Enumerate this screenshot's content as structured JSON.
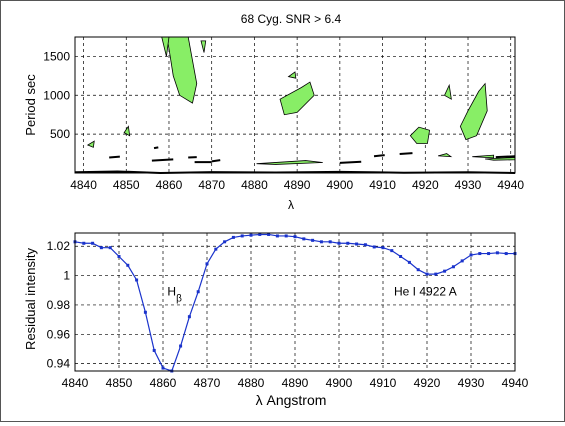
{
  "chart_data": [
    {
      "type": "contour",
      "title": "68 Cyg. SNR > 6.4",
      "xlabel": "λ",
      "ylabel": "Period  sec",
      "xlim": [
        4838,
        4941
      ],
      "ylim": [
        0,
        1750
      ],
      "xticks": [
        4840,
        4850,
        4860,
        4870,
        4880,
        4890,
        4900,
        4910,
        4920,
        4930,
        4940
      ],
      "yticks": [
        500,
        1000,
        1500
      ],
      "grid": true,
      "fill_color": "#88ee66",
      "regions": [
        {
          "points": [
            [
              4859.5,
              1750
            ],
            [
              4864.5,
              1750
            ],
            [
              4866.5,
              1150
            ],
            [
              4865.5,
              900
            ],
            [
              4862.5,
              1000
            ],
            [
              4861,
              1250
            ],
            [
              4860,
              1600
            ]
          ]
        },
        {
          "points": [
            [
              4858.3,
              1750
            ],
            [
              4860,
              1750
            ],
            [
              4859.4,
              1500
            ]
          ]
        },
        {
          "points": [
            [
              4867.5,
              1700
            ],
            [
              4868.6,
              1700
            ],
            [
              4868.2,
              1550
            ]
          ]
        },
        {
          "points": [
            [
              4886,
              950
            ],
            [
              4891,
              1100
            ],
            [
              4893,
              1170
            ],
            [
              4894,
              1000
            ],
            [
              4890,
              780
            ],
            [
              4887,
              750
            ]
          ]
        },
        {
          "points": [
            [
              4888,
              1240
            ],
            [
              4889.5,
              1300
            ],
            [
              4889.7,
              1220
            ]
          ]
        },
        {
          "points": [
            [
              4928.2,
              600
            ],
            [
              4930,
              800
            ],
            [
              4932.5,
              1050
            ],
            [
              4934,
              1150
            ],
            [
              4934.5,
              800
            ],
            [
              4932,
              480
            ],
            [
              4929.5,
              430
            ]
          ]
        },
        {
          "points": [
            [
              4924.5,
              1000
            ],
            [
              4925.6,
              1130
            ],
            [
              4926.1,
              950
            ]
          ]
        },
        {
          "points": [
            [
              4916.5,
              480
            ],
            [
              4918.5,
              590
            ],
            [
              4921,
              550
            ],
            [
              4920.5,
              380
            ],
            [
              4918,
              380
            ]
          ]
        },
        {
          "points": [
            [
              4849.5,
              520
            ],
            [
              4850.5,
              600
            ],
            [
              4850.8,
              480
            ]
          ]
        },
        {
          "points": [
            [
              4841,
              360
            ],
            [
              4842.5,
              410
            ],
            [
              4842.3,
              330
            ]
          ]
        },
        {
          "points": [
            [
              4880.5,
              120
            ],
            [
              4892,
              160
            ],
            [
              4896,
              135
            ],
            [
              4885,
              110
            ]
          ]
        },
        {
          "points": [
            [
              4934,
              180
            ],
            [
              4941,
              200
            ],
            [
              4941,
              170
            ],
            [
              4936,
              165
            ]
          ]
        },
        {
          "points": [
            [
              4923,
              220
            ],
            [
              4925,
              250
            ],
            [
              4926,
              210
            ]
          ]
        },
        {
          "points": [
            [
              4931,
              210
            ],
            [
              4936,
              230
            ],
            [
              4936,
              195
            ]
          ]
        }
      ],
      "dark_segments": [
        [
          [
            4838,
            10
          ],
          [
            4848,
            20
          ],
          [
            4858,
            0
          ],
          [
            4870,
            12
          ],
          [
            4885,
            6
          ],
          [
            4900,
            14
          ],
          [
            4915,
            4
          ],
          [
            4930,
            10
          ],
          [
            4941,
            0
          ]
        ],
        [
          [
            4846,
            200
          ],
          [
            4848.5,
            210
          ]
        ],
        [
          [
            4856,
            160
          ],
          [
            4861,
            175
          ]
        ],
        [
          [
            4870,
            150
          ],
          [
            4872,
            165
          ]
        ],
        [
          [
            4856.5,
            320
          ],
          [
            4857.5,
            330
          ]
        ],
        [
          [
            4864.5,
            200
          ],
          [
            4866.5,
            205
          ]
        ],
        [
          [
            4908,
            215
          ],
          [
            4910.5,
            230
          ]
        ],
        [
          [
            4914,
            245
          ],
          [
            4917,
            255
          ]
        ],
        [
          [
            4936.5,
            205
          ],
          [
            4941,
            215
          ]
        ],
        [
          [
            4866,
            140
          ],
          [
            4870,
            140
          ]
        ],
        [
          [
            4900,
            130
          ],
          [
            4905,
            145
          ]
        ]
      ]
    },
    {
      "type": "line",
      "xlabel": "λ  Angstrom",
      "ylabel": "Residual intensity",
      "xlim": [
        4840,
        4940
      ],
      "ylim": [
        0.935,
        1.029
      ],
      "xticks": [
        4840,
        4850,
        4860,
        4870,
        4880,
        4890,
        4900,
        4910,
        4920,
        4930,
        4940
      ],
      "yticks": [
        0.94,
        0.96,
        0.98,
        1,
        1.02
      ],
      "grid": true,
      "line_color": "#1a33cc",
      "series": [
        {
          "x": [
            4840,
            4842,
            4844,
            4846,
            4848,
            4850,
            4852,
            4854,
            4856,
            4858,
            4860,
            4862,
            4864,
            4866,
            4868,
            4870,
            4872,
            4874,
            4876,
            4878,
            4880,
            4882,
            4884,
            4886,
            4888,
            4890,
            4892,
            4894,
            4896,
            4898,
            4900,
            4902,
            4904,
            4906,
            4908,
            4910,
            4912,
            4914,
            4916,
            4918,
            4920,
            4922,
            4924,
            4926,
            4928,
            4930,
            4932,
            4934,
            4936,
            4938,
            4940
          ],
          "y": [
            1.023,
            1.022,
            1.022,
            1.019,
            1.019,
            1.013,
            1.007,
            0.997,
            0.975,
            0.949,
            0.937,
            0.935,
            0.952,
            0.972,
            0.989,
            1.008,
            1.018,
            1.023,
            1.026,
            1.027,
            1.0275,
            1.028,
            1.028,
            1.027,
            1.027,
            1.0265,
            1.025,
            1.024,
            1.023,
            1.023,
            1.022,
            1.022,
            1.0215,
            1.021,
            1.0195,
            1.019,
            1.017,
            1.013,
            1.009,
            1.004,
            1.001,
            1.001,
            1.003,
            1.006,
            1.01,
            1.014,
            1.015,
            1.015,
            1.0155,
            1.015,
            1.015
          ]
        }
      ],
      "annotations": [
        {
          "text": "H",
          "subscript": "β",
          "x": 4861,
          "y": 0.9865
        },
        {
          "text": "He I 4922 A",
          "x": 4912.5,
          "y": 0.9865
        }
      ]
    }
  ]
}
